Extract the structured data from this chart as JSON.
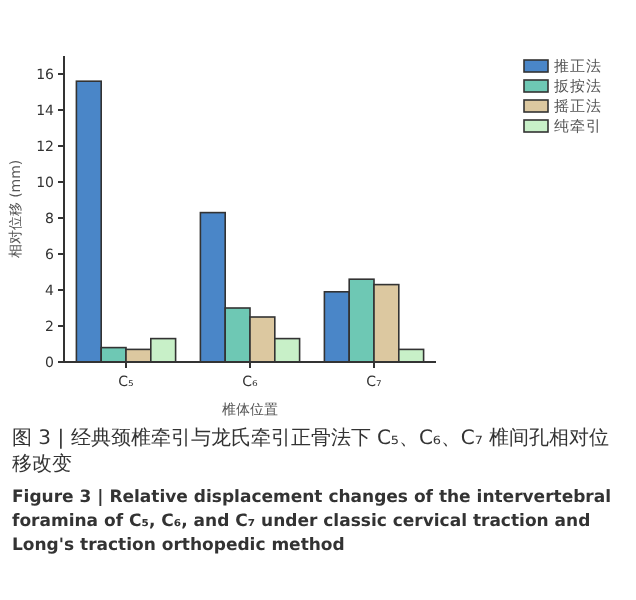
{
  "chart_data": {
    "type": "bar",
    "xlabel": "椎体位置",
    "ylabel": "相对位移 (mm)",
    "categories": [
      "C₅",
      "C₆",
      "C₇"
    ],
    "series": [
      {
        "name": "推正法",
        "color": "#4a86c8",
        "values": [
          15.6,
          8.3,
          3.9
        ]
      },
      {
        "name": "扳按法",
        "color": "#6ec8b4",
        "values": [
          0.8,
          3.0,
          4.6
        ]
      },
      {
        "name": "摇正法",
        "color": "#dcc8a0",
        "values": [
          0.7,
          2.5,
          4.3
        ]
      },
      {
        "name": "纯牵引",
        "color": "#c8f0c8",
        "values": [
          1.3,
          1.3,
          0.7
        ]
      }
    ],
    "ylim": [
      0,
      17
    ],
    "yticks": [
      0,
      2,
      4,
      6,
      8,
      10,
      12,
      14,
      16
    ],
    "legend": "top right",
    "grid": false,
    "annotations": [
      "图 3 | 经典颈椎牵引与龙氏牵引正骨法下 C₅、C₆、C₇ 椎间孔相对位移改变",
      "Figure 3 | Relative displacement changes of the intervertebral foramina of C₅, C₆, and C₇ under classic cervical traction and Long's traction orthopedic method"
    ]
  }
}
